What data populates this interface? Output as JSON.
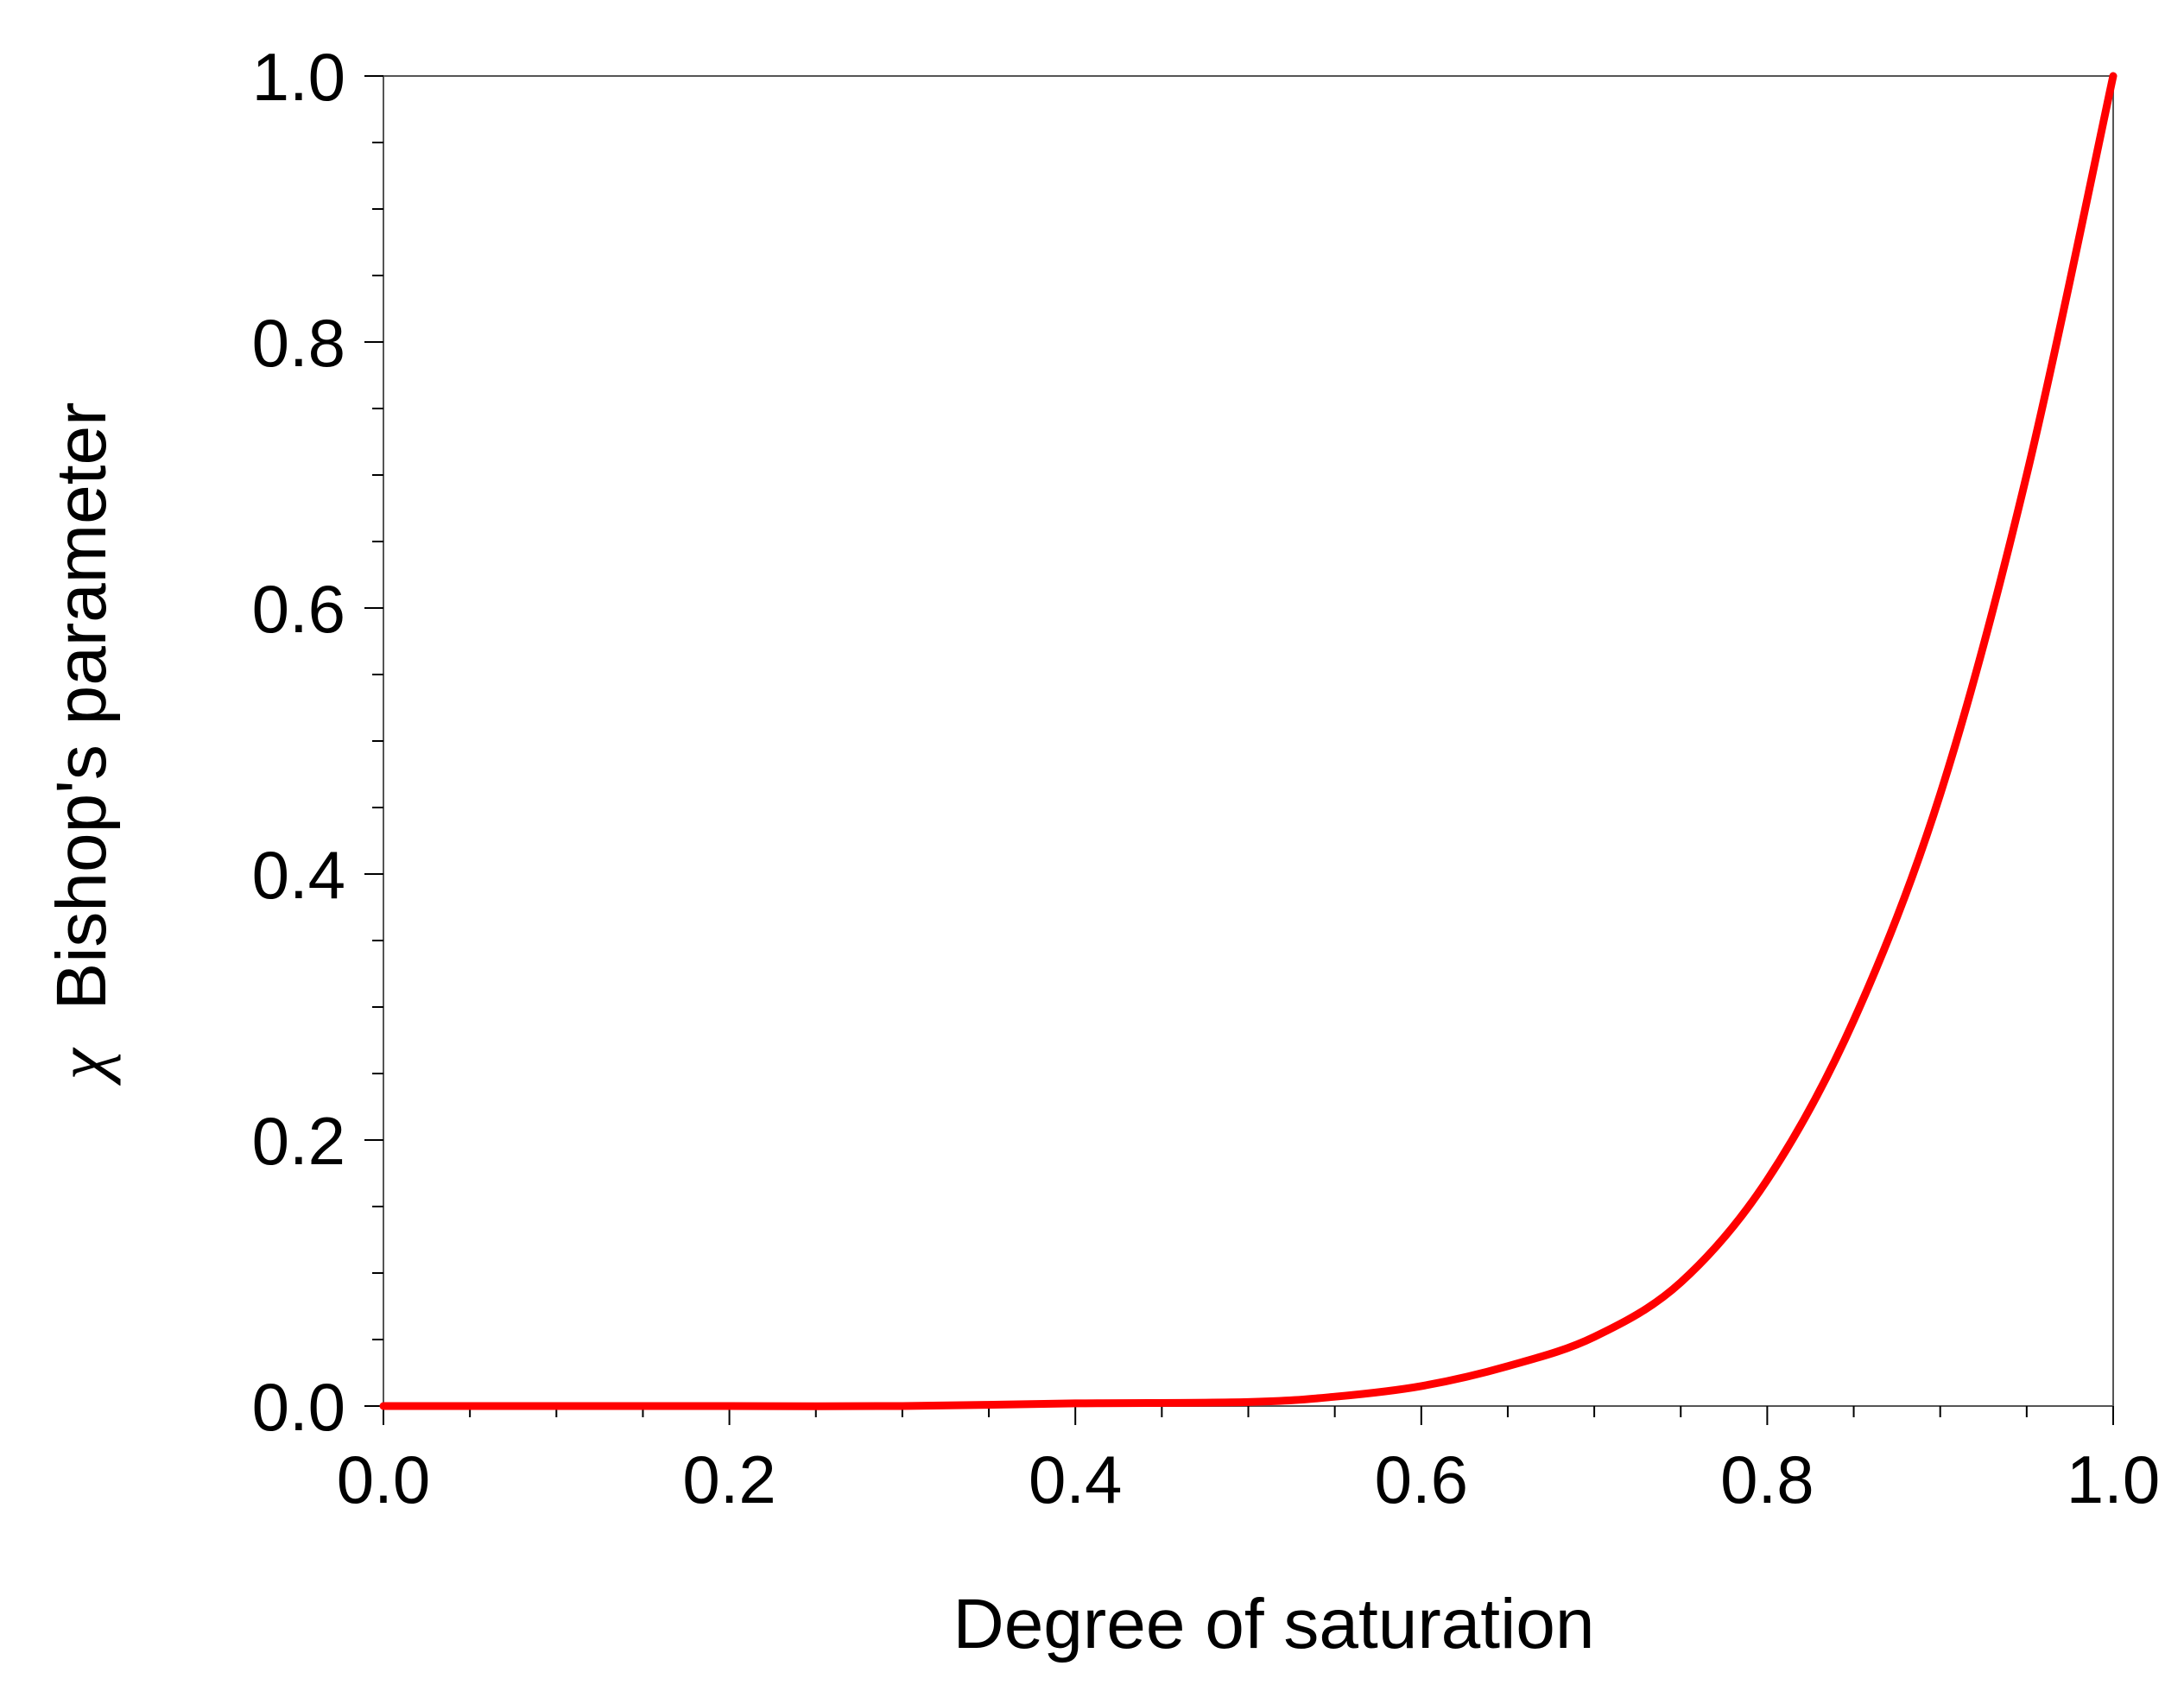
{
  "chart_data": {
    "type": "line",
    "title": "",
    "xlabel": "Degree of saturation",
    "ylabel_symbol": "χ",
    "ylabel": "Bishop's parameter",
    "xlim": [
      0.0,
      1.0
    ],
    "ylim": [
      0.0,
      1.0
    ],
    "x_ticks": [
      "0.0",
      "0.2",
      "0.4",
      "0.6",
      "0.8",
      "1.0"
    ],
    "y_ticks": [
      "0.0",
      "0.2",
      "0.4",
      "0.6",
      "0.8",
      "1.0"
    ],
    "grid": false,
    "legend": "none",
    "line_color": "#ff0000",
    "series": [
      {
        "x": [
          0.0,
          0.1,
          0.2,
          0.3,
          0.4,
          0.5,
          0.55,
          0.6,
          0.65,
          0.7,
          0.75,
          0.8,
          0.85,
          0.9,
          0.95,
          1.0
        ],
        "y": [
          0.0,
          0.0,
          0.0,
          0.0,
          0.002,
          0.003,
          0.007,
          0.015,
          0.03,
          0.052,
          0.093,
          0.17,
          0.29,
          0.46,
          0.7,
          1.0
        ]
      }
    ]
  }
}
